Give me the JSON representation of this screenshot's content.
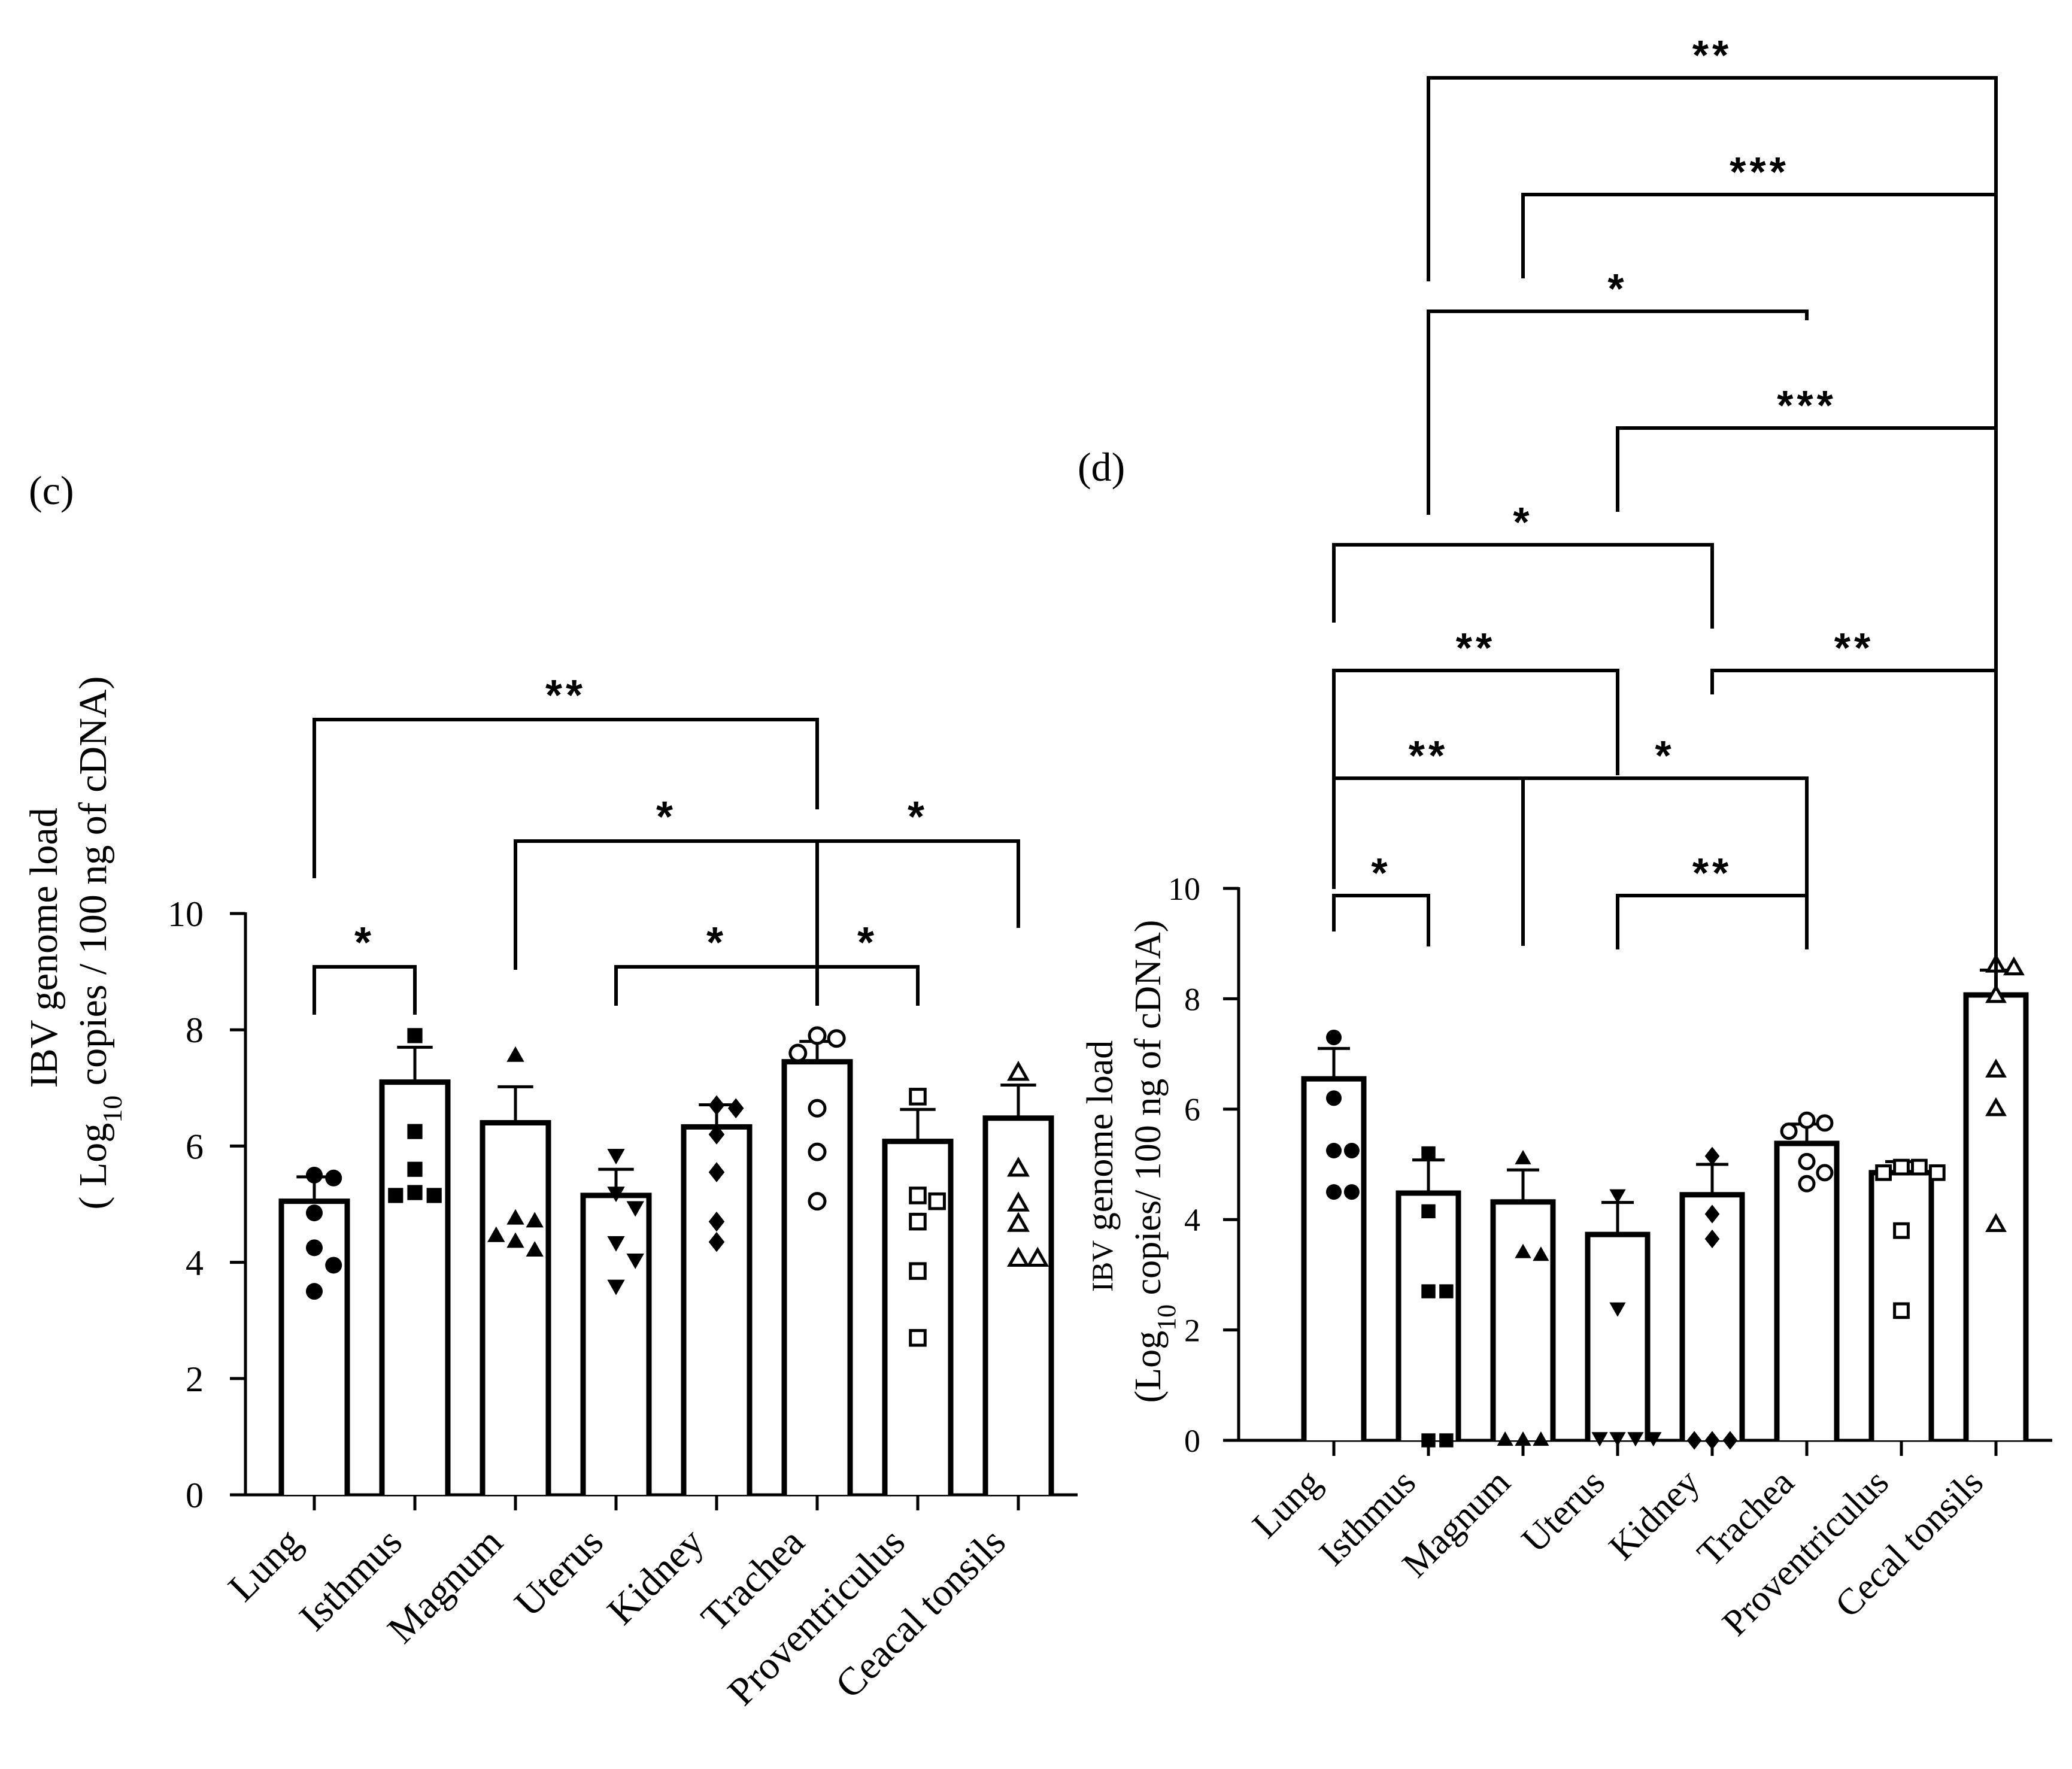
{
  "chart_data": [
    {
      "panel_label": "(c)",
      "type": "bar",
      "ylabel_line1": "IBV genome load",
      "ylabel_line2_prefix": "( Log",
      "ylabel_line2_sub": "10",
      "ylabel_line2_suffix": " copies / 100 ng of cDNA)",
      "ylim": [
        0,
        10
      ],
      "yticks": [
        "0",
        "2",
        "4",
        "6",
        "8",
        "10"
      ],
      "categories": [
        "Lung",
        "Isthmus",
        "Magnum",
        "Uterus",
        "Kidney",
        "Trachea",
        "Proventriculus",
        "Ceacal tonsils"
      ],
      "means": [
        5.05,
        7.1,
        6.4,
        5.15,
        6.33,
        7.45,
        6.08,
        6.48
      ],
      "sem": [
        0.42,
        0.6,
        0.62,
        0.45,
        0.38,
        0.35,
        0.55,
        0.57
      ],
      "points": [
        [
          5.5,
          5.45,
          4.85,
          4.25,
          3.95,
          3.5
        ],
        [
          7.9,
          6.25,
          5.6,
          5.2,
          5.15,
          5.15
        ],
        [
          7.55,
          4.75,
          4.7,
          4.45,
          4.35,
          4.2
        ],
        [
          5.85,
          5.2,
          4.95,
          4.35,
          4.05,
          3.6
        ],
        [
          6.7,
          6.65,
          6.2,
          5.55,
          4.7,
          4.35
        ],
        [
          7.9,
          7.85,
          7.6,
          6.65,
          5.9,
          5.05
        ],
        [
          6.85,
          5.15,
          5.05,
          4.7,
          3.85,
          2.7
        ],
        [
          7.25,
          5.6,
          5.0,
          4.65,
          4.05,
          4.05
        ]
      ],
      "markers": [
        "circle-filled",
        "square-filled",
        "triangle-up-filled",
        "triangle-down-filled",
        "diamond-filled",
        "circle-open",
        "square-open",
        "triangle-open"
      ],
      "significance": [
        {
          "from": 0,
          "to": 1,
          "label": "*"
        },
        {
          "from": 3,
          "to": 5,
          "label": "*"
        },
        {
          "from": 5,
          "to": 6,
          "label": "*"
        },
        {
          "from": 2,
          "to": 5,
          "label": "*"
        },
        {
          "from": 5,
          "to": 7,
          "label": "*"
        },
        {
          "from": 0,
          "to": 5,
          "label": "**"
        }
      ]
    },
    {
      "panel_label": "(d)",
      "type": "bar",
      "ylabel_line1_prefix": "IBV",
      "ylabel_line1_suffix": " genome load",
      "ylabel_line2_prefix": "(Log",
      "ylabel_line2_sub": "10",
      "ylabel_line2_suffix": " copies/ 100 ng of cDNA)",
      "ylim": [
        0,
        10
      ],
      "yticks": [
        "0",
        "2",
        "4",
        "6",
        "8",
        "10"
      ],
      "categories": [
        "Lung",
        "Isthmus",
        "Magnum",
        "Uterus",
        "Kidney",
        "Trachea",
        "Proventriculus",
        "Cecal tonsils"
      ],
      "means": [
        6.55,
        4.48,
        4.32,
        3.73,
        4.45,
        5.38,
        4.85,
        8.07
      ],
      "sem": [
        0.55,
        0.6,
        0.58,
        0.58,
        0.55,
        0.35,
        0.2,
        0.45
      ],
      "points": [
        [
          7.3,
          6.2,
          5.25,
          5.25,
          4.5,
          4.5
        ],
        [
          5.2,
          4.15,
          2.7,
          2.7,
          0.0,
          0.0
        ],
        [
          5.1,
          3.4,
          3.35,
          0.0,
          0.0,
          0.0
        ],
        [
          4.45,
          2.4,
          0.05,
          0.05,
          0.05,
          0.05
        ],
        [
          5.15,
          4.1,
          3.65,
          0.0,
          0.0,
          0.0
        ],
        [
          5.8,
          5.75,
          5.6,
          5.05,
          4.85,
          4.65
        ],
        [
          4.95,
          4.95,
          4.85,
          4.85,
          3.8,
          2.35
        ],
        [
          8.6,
          8.55,
          8.05,
          6.7,
          6.0,
          3.9
        ]
      ],
      "markers": [
        "circle-filled",
        "square-filled",
        "triangle-up-filled",
        "triangle-down-filled",
        "diamond-filled",
        "circle-open",
        "square-open",
        "triangle-open"
      ],
      "significance": [
        {
          "from": 0,
          "to": 1,
          "label": "*"
        },
        {
          "from": 3,
          "to": 5,
          "label": "**"
        },
        {
          "from": 0,
          "to": 2,
          "label": "**"
        },
        {
          "from": 2,
          "to": 5,
          "label": "*"
        },
        {
          "from": 0,
          "to": 3,
          "label": "**"
        },
        {
          "from": 4,
          "to": 7,
          "label": "**"
        },
        {
          "from": 0,
          "to": 4,
          "label": "*"
        },
        {
          "from": 3,
          "to": 7,
          "label": "***"
        },
        {
          "from": 1,
          "to": 5,
          "label": "*"
        },
        {
          "from": 2,
          "to": 7,
          "label": "***"
        },
        {
          "from": 1,
          "to": 7,
          "label": "**"
        }
      ]
    }
  ]
}
